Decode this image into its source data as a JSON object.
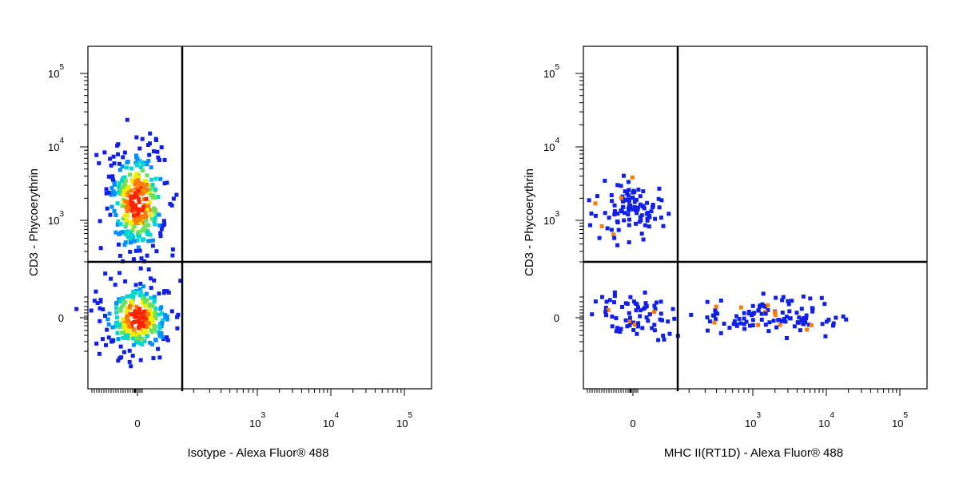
{
  "chart_data": [
    {
      "type": "scatter",
      "xlabel": "Isotype - Alexa Fluor® 488",
      "ylabel": "CD3 - Phycoerythrin",
      "x_ticks": [
        {
          "value": 0,
          "base": "0",
          "exp": ""
        },
        {
          "value": 1000,
          "base": "10",
          "exp": "3"
        },
        {
          "value": 10000,
          "base": "10",
          "exp": "4"
        },
        {
          "value": 100000,
          "base": "10",
          "exp": "5"
        }
      ],
      "y_ticks": [
        {
          "value": 0,
          "base": "0",
          "exp": ""
        },
        {
          "value": 1000,
          "base": "10",
          "exp": "3"
        },
        {
          "value": 10000,
          "base": "10",
          "exp": "4"
        },
        {
          "value": 100000,
          "base": "10",
          "exp": "5"
        }
      ],
      "quadrant_gate": {
        "x": 150,
        "y": 200
      },
      "populations": [
        {
          "x_center": 0,
          "y_center": 1800,
          "count": 340
        },
        {
          "x_center": 0,
          "y_center": 0,
          "count": 280
        }
      ]
    },
    {
      "type": "scatter",
      "xlabel": "MHC II(RT1D) - Alexa Fluor® 488",
      "ylabel": "CD3 - Phycoerythrin",
      "x_ticks": [
        {
          "value": 0,
          "base": "0",
          "exp": ""
        },
        {
          "value": 1000,
          "base": "10",
          "exp": "3"
        },
        {
          "value": 10000,
          "base": "10",
          "exp": "4"
        },
        {
          "value": 100000,
          "base": "10",
          "exp": "5"
        }
      ],
      "y_ticks": [
        {
          "value": 0,
          "base": "0",
          "exp": ""
        },
        {
          "value": 1000,
          "base": "10",
          "exp": "3"
        },
        {
          "value": 10000,
          "base": "10",
          "exp": "4"
        },
        {
          "value": 100000,
          "base": "10",
          "exp": "5"
        }
      ],
      "quadrant_gate": {
        "x": 150,
        "y": 200
      },
      "populations": [
        {
          "x_center": 0,
          "y_center": 1500,
          "count": 110
        },
        {
          "x_center": 0,
          "y_center": 0,
          "count": 70
        },
        {
          "x_center": 1500,
          "y_center": 0,
          "count": 120
        }
      ]
    }
  ]
}
